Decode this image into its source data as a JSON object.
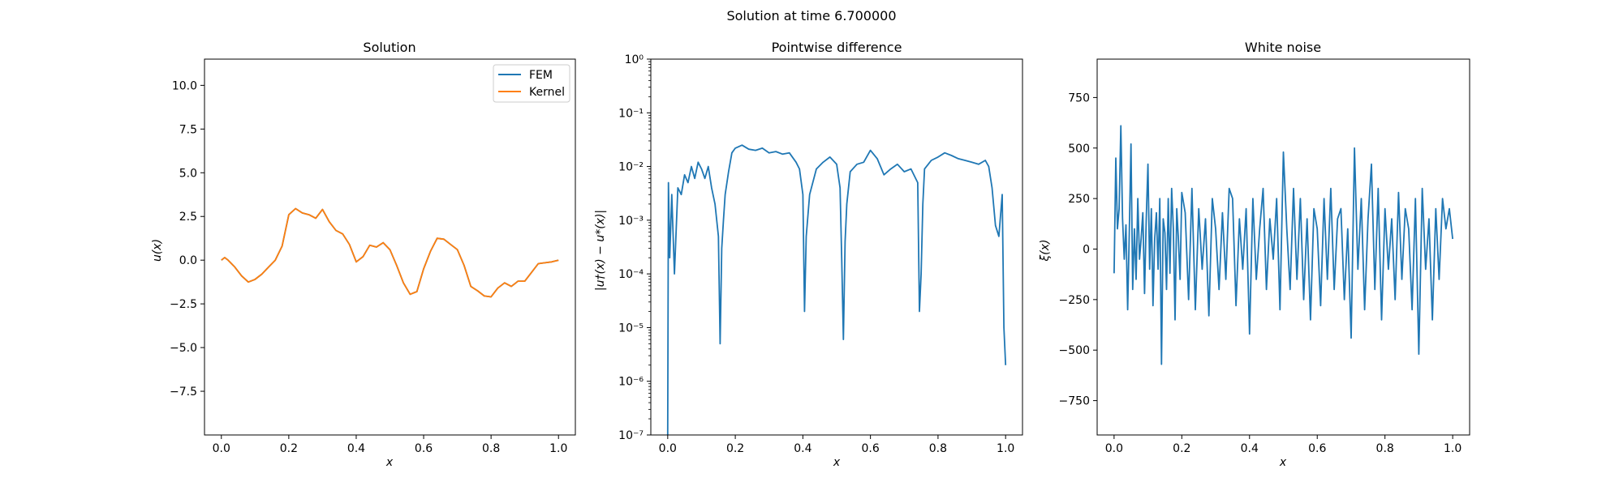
{
  "suptitle": "Solution at time 6.700000",
  "colors": {
    "fem": "#1f77b4",
    "kernel": "#ff7f0e",
    "noise": "#1f77b4",
    "diff": "#1f77b4"
  },
  "chart_data": [
    {
      "type": "line",
      "title": "Solution",
      "xlabel": "x",
      "ylabel": "u(x)",
      "xlim": [
        -0.05,
        1.05
      ],
      "ylim": [
        -10,
        11.5
      ],
      "xticks": [
        "0.0",
        "0.2",
        "0.4",
        "0.6",
        "0.8",
        "1.0"
      ],
      "yticks": [
        "−7.5",
        "−5.0",
        "−2.5",
        "0.0",
        "2.5",
        "5.0",
        "7.5",
        "10.0"
      ],
      "legend": "top-right",
      "series": [
        {
          "name": "FEM",
          "x": [
            0.0,
            0.01,
            0.02,
            0.04,
            0.06,
            0.08,
            0.1,
            0.12,
            0.14,
            0.16,
            0.18,
            0.2,
            0.22,
            0.24,
            0.26,
            0.28,
            0.3,
            0.32,
            0.34,
            0.36,
            0.38,
            0.4,
            0.42,
            0.44,
            0.46,
            0.48,
            0.5,
            0.52,
            0.54,
            0.56,
            0.58,
            0.6,
            0.62,
            0.64,
            0.66,
            0.68,
            0.7,
            0.72,
            0.74,
            0.76,
            0.78,
            0.8,
            0.82,
            0.84,
            0.86,
            0.88,
            0.9,
            0.92,
            0.94,
            0.96,
            0.98,
            1.0
          ],
          "y": [
            0.0,
            0.15,
            0.0,
            -0.4,
            -0.9,
            -1.25,
            -1.1,
            -0.8,
            -0.4,
            0.0,
            0.8,
            2.6,
            2.95,
            2.7,
            2.6,
            2.4,
            2.9,
            2.2,
            1.7,
            1.5,
            0.9,
            -0.1,
            0.2,
            0.85,
            0.75,
            1.0,
            0.6,
            -0.3,
            -1.3,
            -1.95,
            -1.8,
            -0.5,
            0.5,
            1.25,
            1.2,
            0.9,
            0.6,
            -0.3,
            -1.5,
            -1.75,
            -2.05,
            -2.1,
            -1.6,
            -1.3,
            -1.5,
            -1.2,
            -1.2,
            -0.7,
            -0.2,
            -0.15,
            -0.1,
            0.0
          ]
        },
        {
          "name": "Kernel",
          "x": [
            0.0,
            0.01,
            0.02,
            0.04,
            0.06,
            0.08,
            0.1,
            0.12,
            0.14,
            0.16,
            0.18,
            0.2,
            0.22,
            0.24,
            0.26,
            0.28,
            0.3,
            0.32,
            0.34,
            0.36,
            0.38,
            0.4,
            0.42,
            0.44,
            0.46,
            0.48,
            0.5,
            0.52,
            0.54,
            0.56,
            0.58,
            0.6,
            0.62,
            0.64,
            0.66,
            0.68,
            0.7,
            0.72,
            0.74,
            0.76,
            0.78,
            0.8,
            0.82,
            0.84,
            0.86,
            0.88,
            0.9,
            0.92,
            0.94,
            0.96,
            0.98,
            1.0
          ],
          "y": [
            0.0,
            0.15,
            0.0,
            -0.4,
            -0.9,
            -1.25,
            -1.1,
            -0.8,
            -0.4,
            0.0,
            0.8,
            2.6,
            2.95,
            2.7,
            2.6,
            2.4,
            2.9,
            2.2,
            1.7,
            1.5,
            0.9,
            -0.1,
            0.2,
            0.85,
            0.75,
            1.0,
            0.6,
            -0.3,
            -1.3,
            -1.95,
            -1.8,
            -0.5,
            0.5,
            1.25,
            1.2,
            0.9,
            0.6,
            -0.3,
            -1.5,
            -1.75,
            -2.05,
            -2.1,
            -1.6,
            -1.3,
            -1.5,
            -1.2,
            -1.2,
            -0.7,
            -0.2,
            -0.15,
            -0.1,
            0.0
          ]
        }
      ]
    },
    {
      "type": "line",
      "title": "Pointwise difference",
      "xlabel": "x",
      "ylabel": "|u†(x) − u*(x)|",
      "xlim": [
        -0.05,
        1.05
      ],
      "ylim": [
        1e-07,
        1
      ],
      "yscale": "log",
      "xticks": [
        "0.0",
        "0.2",
        "0.4",
        "0.6",
        "0.8",
        "1.0"
      ],
      "yticks": [
        "10⁻⁷",
        "10⁻⁶",
        "10⁻⁵",
        "10⁻⁴",
        "10⁻³",
        "10⁻²",
        "10⁻¹",
        "10⁰"
      ],
      "series": [
        {
          "x": [
            0.0,
            0.002,
            0.006,
            0.012,
            0.02,
            0.03,
            0.04,
            0.05,
            0.06,
            0.07,
            0.08,
            0.09,
            0.1,
            0.11,
            0.12,
            0.13,
            0.14,
            0.15,
            0.155,
            0.16,
            0.165,
            0.17,
            0.18,
            0.19,
            0.2,
            0.22,
            0.24,
            0.26,
            0.28,
            0.3,
            0.32,
            0.34,
            0.36,
            0.38,
            0.39,
            0.4,
            0.405,
            0.41,
            0.42,
            0.44,
            0.46,
            0.48,
            0.5,
            0.51,
            0.515,
            0.52,
            0.525,
            0.53,
            0.54,
            0.56,
            0.58,
            0.6,
            0.62,
            0.64,
            0.66,
            0.68,
            0.7,
            0.72,
            0.74,
            0.745,
            0.75,
            0.755,
            0.76,
            0.78,
            0.8,
            0.82,
            0.84,
            0.86,
            0.88,
            0.9,
            0.92,
            0.94,
            0.95,
            0.96,
            0.97,
            0.98,
            0.99,
            0.995,
            1.0
          ],
          "y": [
            1e-07,
            0.005,
            0.0002,
            0.003,
            0.0001,
            0.004,
            0.003,
            0.007,
            0.005,
            0.01,
            0.006,
            0.012,
            0.009,
            0.006,
            0.01,
            0.004,
            0.002,
            0.0005,
            5e-06,
            0.0003,
            0.001,
            0.003,
            0.008,
            0.018,
            0.022,
            0.025,
            0.021,
            0.02,
            0.022,
            0.018,
            0.019,
            0.017,
            0.018,
            0.012,
            0.009,
            0.003,
            2e-05,
            0.0005,
            0.003,
            0.009,
            0.012,
            0.015,
            0.011,
            0.004,
            0.0002,
            6e-06,
            0.0004,
            0.002,
            0.008,
            0.011,
            0.012,
            0.02,
            0.014,
            0.007,
            0.009,
            0.011,
            0.008,
            0.009,
            0.005,
            2e-05,
            0.0001,
            0.002,
            0.009,
            0.013,
            0.015,
            0.018,
            0.016,
            0.014,
            0.013,
            0.012,
            0.011,
            0.013,
            0.01,
            0.004,
            0.0008,
            0.0005,
            0.003,
            1e-05,
            2e-06
          ]
        }
      ]
    },
    {
      "type": "line",
      "title": "White noise",
      "xlabel": "x",
      "ylabel": "ξ(x)",
      "xlim": [
        -0.05,
        1.05
      ],
      "ylim": [
        -920,
        940
      ],
      "xticks": [
        "0.0",
        "0.2",
        "0.4",
        "0.6",
        "0.8",
        "1.0"
      ],
      "yticks": [
        "−750",
        "−500",
        "−250",
        "0",
        "250",
        "500",
        "750"
      ],
      "series": [
        {
          "x": [
            0.0,
            0.005,
            0.01,
            0.015,
            0.02,
            0.025,
            0.03,
            0.035,
            0.04,
            0.045,
            0.05,
            0.055,
            0.06,
            0.065,
            0.07,
            0.075,
            0.08,
            0.085,
            0.09,
            0.095,
            0.1,
            0.105,
            0.11,
            0.115,
            0.12,
            0.125,
            0.13,
            0.135,
            0.14,
            0.145,
            0.15,
            0.155,
            0.16,
            0.165,
            0.17,
            0.175,
            0.18,
            0.185,
            0.19,
            0.195,
            0.2,
            0.21,
            0.22,
            0.23,
            0.24,
            0.25,
            0.26,
            0.27,
            0.28,
            0.29,
            0.3,
            0.31,
            0.32,
            0.33,
            0.34,
            0.35,
            0.36,
            0.37,
            0.38,
            0.39,
            0.4,
            0.41,
            0.42,
            0.43,
            0.44,
            0.45,
            0.46,
            0.47,
            0.48,
            0.49,
            0.5,
            0.51,
            0.52,
            0.53,
            0.54,
            0.55,
            0.56,
            0.57,
            0.58,
            0.59,
            0.6,
            0.61,
            0.62,
            0.63,
            0.64,
            0.65,
            0.66,
            0.67,
            0.68,
            0.69,
            0.7,
            0.71,
            0.72,
            0.73,
            0.74,
            0.75,
            0.76,
            0.77,
            0.78,
            0.79,
            0.8,
            0.81,
            0.82,
            0.83,
            0.84,
            0.85,
            0.86,
            0.87,
            0.88,
            0.89,
            0.9,
            0.91,
            0.92,
            0.93,
            0.94,
            0.95,
            0.96,
            0.97,
            0.98,
            0.99,
            1.0
          ],
          "y": [
            -120,
            450,
            100,
            200,
            610,
            150,
            -50,
            120,
            -300,
            80,
            520,
            -200,
            100,
            -150,
            250,
            -50,
            50,
            180,
            -220,
            150,
            420,
            -100,
            200,
            -280,
            50,
            180,
            -100,
            250,
            -570,
            150,
            80,
            -200,
            250,
            -120,
            300,
            100,
            -350,
            200,
            50,
            -150,
            280,
            180,
            -250,
            300,
            -300,
            200,
            -100,
            150,
            -330,
            250,
            100,
            -200,
            180,
            -150,
            300,
            250,
            -280,
            150,
            -100,
            200,
            -420,
            250,
            -150,
            100,
            300,
            -200,
            150,
            -50,
            250,
            -300,
            480,
            100,
            -200,
            300,
            -150,
            250,
            -250,
            150,
            -350,
            200,
            100,
            -280,
            250,
            -150,
            300,
            -200,
            150,
            200,
            -250,
            100,
            -440,
            500,
            -100,
            250,
            -300,
            150,
            420,
            -200,
            300,
            -350,
            200,
            -100,
            150,
            -250,
            280,
            -150,
            200,
            100,
            -300,
            250,
            -520,
            300,
            -100,
            150,
            -350,
            200,
            -150,
            250,
            100,
            200,
            50
          ]
        }
      ]
    }
  ]
}
